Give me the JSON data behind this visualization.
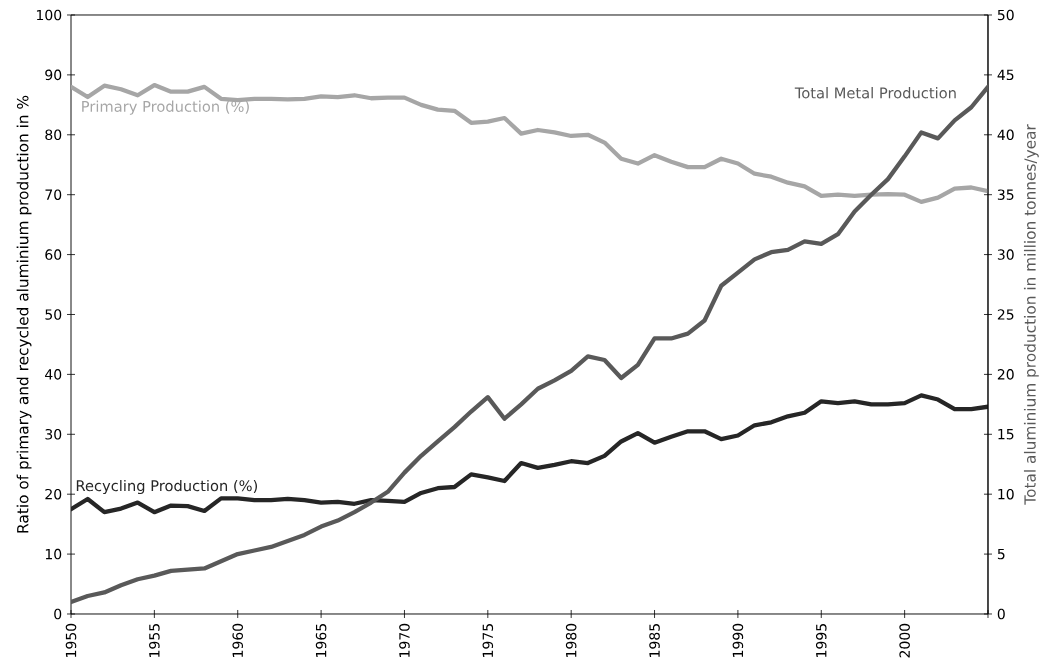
{
  "chart_data": {
    "type": "line",
    "ylabel": "Ratio of primary and recycled aluminium production in %",
    "y2label": "Total aluminium production in million tonnes/year",
    "x": [
      1950,
      1951,
      1952,
      1953,
      1954,
      1955,
      1956,
      1957,
      1958,
      1959,
      1960,
      1961,
      1962,
      1963,
      1964,
      1965,
      1966,
      1967,
      1968,
      1969,
      1970,
      1971,
      1972,
      1973,
      1974,
      1975,
      1976,
      1977,
      1978,
      1979,
      1980,
      1981,
      1982,
      1983,
      1984,
      1985,
      1986,
      1987,
      1988,
      1989,
      1990,
      1991,
      1992,
      1993,
      1994,
      1995,
      1996,
      1997,
      1998,
      1999,
      2000,
      2001,
      2002,
      2003,
      2004,
      2005
    ],
    "series": [
      {
        "name": "Primary Production (%)",
        "color": "#a6a6a6",
        "values": [
          88,
          86.3,
          88.2,
          87.6,
          86.6,
          88.3,
          87.2,
          87.2,
          88,
          86,
          85.8,
          86,
          86,
          85.9,
          86,
          86.4,
          86.3,
          86.6,
          86.1,
          86.2,
          86.2,
          85,
          84.2,
          84,
          82,
          82.2,
          82.8,
          80.2,
          80.8,
          80.4,
          79.8,
          80,
          78.7,
          76,
          75.2,
          76.6,
          75.5,
          74.6,
          74.6,
          76,
          75.2,
          73.5,
          73,
          72,
          71.4,
          69.8,
          70,
          69.8,
          70,
          70.1,
          70,
          68.8,
          69.5,
          71,
          71.2,
          70.6
        ]
      },
      {
        "name": "Recycling Production (%)",
        "color": "#262626",
        "values": [
          17.5,
          19.2,
          17,
          17.6,
          18.6,
          17,
          18.1,
          18,
          17.2,
          19.3,
          19.3,
          19,
          19,
          19.2,
          19,
          18.6,
          18.7,
          18.4,
          19,
          18.9,
          18.7,
          20.2,
          21,
          21.2,
          23.3,
          22.8,
          22.2,
          25.2,
          24.4,
          24.9,
          25.5,
          25.2,
          26.4,
          28.8,
          30.2,
          28.6,
          29.6,
          30.5,
          30.5,
          29.2,
          29.8,
          31.5,
          32,
          33,
          33.6,
          35.5,
          35.2,
          35.5,
          35,
          35,
          35.2,
          36.5,
          35.8,
          34.2,
          34.2,
          34.6
        ]
      },
      {
        "name": "Total Metal Production",
        "color": "#595959",
        "axis": "y2",
        "values": [
          1,
          1.5,
          1.8,
          2.4,
          2.9,
          3.2,
          3.6,
          3.7,
          3.8,
          4.4,
          5,
          5.3,
          5.6,
          6.1,
          6.6,
          7.3,
          7.8,
          8.5,
          9.3,
          10.2,
          11.8,
          13.2,
          14.4,
          15.6,
          16.9,
          18.1,
          16.3,
          17.5,
          18.8,
          19.5,
          20.3,
          21.5,
          21.2,
          19.7,
          20.8,
          23,
          23,
          23.4,
          24.5,
          27.4,
          28.5,
          29.6,
          30.2,
          30.4,
          31.1,
          30.9,
          31.7,
          33.6,
          35,
          36.3,
          38.2,
          40.2,
          39.7,
          41.2,
          42.3,
          44
        ]
      }
    ],
    "xlim": [
      1950,
      2005
    ],
    "xticks": [
      1950,
      1955,
      1960,
      1965,
      1970,
      1975,
      1980,
      1985,
      1990,
      1995,
      2000,
      {
        "value": 2005,
        "label": null
      }
    ],
    "ylim": [
      0,
      100
    ],
    "yticks": [
      0,
      10,
      20,
      30,
      40,
      50,
      60,
      70,
      80,
      90,
      100
    ],
    "y2lim": [
      0,
      50
    ],
    "y2ticks": [
      0,
      5,
      10,
      15,
      20,
      25,
      30,
      35,
      40,
      45,
      50
    ],
    "legend": false,
    "grid": false,
    "marker": "none",
    "line_style": "solid"
  }
}
